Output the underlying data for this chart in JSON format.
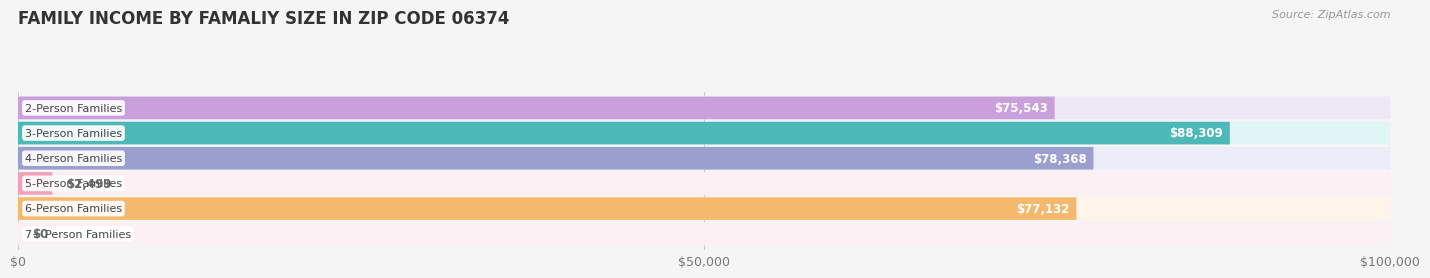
{
  "title": "FAMILY INCOME BY FAMALIY SIZE IN ZIP CODE 06374",
  "source": "Source: ZipAtlas.com",
  "categories": [
    "2-Person Families",
    "3-Person Families",
    "4-Person Families",
    "5-Person Families",
    "6-Person Families",
    "7+ Person Families"
  ],
  "values": [
    75543,
    88309,
    78368,
    2499,
    77132,
    0
  ],
  "bar_colors": [
    "#c9a0dc",
    "#4db8b8",
    "#9b9fce",
    "#f4a0b8",
    "#f5b96e",
    "#f4a0b8"
  ],
  "bar_bg_colors": [
    "#ede8f5",
    "#e0f5f5",
    "#ecedf8",
    "#fdf0f4",
    "#fef4e8",
    "#fdf0f4"
  ],
  "value_labels": [
    "$75,543",
    "$88,309",
    "$78,368",
    "$2,499",
    "$77,132",
    "$0"
  ],
  "xlim": [
    0,
    100000
  ],
  "xticks": [
    0,
    50000,
    100000
  ],
  "xticklabels": [
    "$0",
    "$50,000",
    "$100,000"
  ],
  "background_color": "#f5f5f5",
  "title_color": "#333333"
}
